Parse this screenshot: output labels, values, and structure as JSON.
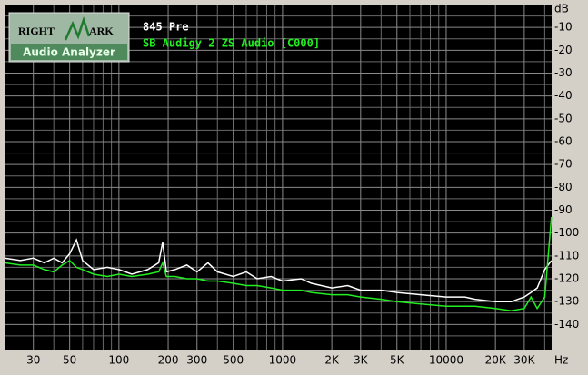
{
  "chart_data": {
    "type": "line",
    "logo": {
      "left": "RIGHT",
      "right": "ARK",
      "bottom": "Audio Analyzer"
    },
    "x_unit": "Hz",
    "y_unit": "dB",
    "xscale": "log",
    "xlim": [
      20,
      44100
    ],
    "ylim": [
      -151,
      0
    ],
    "xticks": [
      30,
      50,
      100,
      200,
      300,
      500,
      1000,
      {
        "value": 2000,
        "label": "2K"
      },
      {
        "value": 3000,
        "label": "3K"
      },
      {
        "value": 5000,
        "label": "5K"
      },
      10000,
      {
        "value": 20000,
        "label": "20K"
      },
      {
        "value": 30000,
        "label": "30K"
      }
    ],
    "x_minor_grid": [
      40,
      60,
      70,
      80,
      90,
      400,
      600,
      700,
      800,
      900,
      4000,
      6000,
      7000,
      8000,
      9000,
      40000
    ],
    "yticks": [
      -10,
      -20,
      -30,
      -40,
      -50,
      -60,
      -70,
      -80,
      -90,
      -100,
      -110,
      -120,
      -130,
      -140
    ],
    "y_minor_grid": [
      -5,
      -15,
      -25,
      -35,
      -45,
      -55,
      -65,
      -75,
      -85,
      -95,
      -105,
      -115,
      -125,
      -135,
      -145
    ],
    "grid": true,
    "series": [
      {
        "name": "845 Pre",
        "color": "#ffffff",
        "x": [
          20,
          25,
          30,
          35,
          40,
          45,
          50,
          55,
          60,
          70,
          85,
          100,
          120,
          150,
          175,
          185,
          195,
          220,
          260,
          300,
          350,
          400,
          500,
          600,
          700,
          850,
          1000,
          1300,
          1500,
          2000,
          2500,
          3000,
          4000,
          5000,
          7000,
          10000,
          13000,
          15000,
          20000,
          25000,
          30000,
          33000,
          36000,
          40000,
          44000
        ],
        "values": [
          -111,
          -112,
          -111,
          -113,
          -111,
          -113,
          -109,
          -103,
          -112,
          -116,
          -115,
          -116,
          -118,
          -116,
          -113,
          -104,
          -117,
          -116,
          -114,
          -117,
          -113,
          -117,
          -119,
          -117,
          -120,
          -119,
          -121,
          -120,
          -122,
          -124,
          -123,
          -125,
          -125,
          -126,
          -127,
          -128,
          -128,
          -129,
          -130,
          -130,
          -128,
          -126,
          -124,
          -116,
          -112
        ]
      },
      {
        "name": "SB Audigy 2 ZS Audio [C000]",
        "color": "#22ee22",
        "x": [
          20,
          25,
          30,
          35,
          40,
          45,
          50,
          55,
          60,
          70,
          85,
          100,
          120,
          150,
          175,
          185,
          195,
          220,
          260,
          300,
          350,
          400,
          500,
          600,
          700,
          850,
          1000,
          1300,
          1500,
          2000,
          2500,
          3000,
          4000,
          5000,
          7000,
          10000,
          13000,
          15000,
          20000,
          25000,
          30000,
          33000,
          36000,
          40000,
          44000
        ],
        "values": [
          -113,
          -114,
          -114,
          -116,
          -117,
          -114,
          -112,
          -115,
          -116,
          -118,
          -119,
          -118,
          -119,
          -118,
          -117,
          -113,
          -119,
          -119,
          -120,
          -120,
          -121,
          -121,
          -122,
          -123,
          -123,
          -124,
          -125,
          -125,
          -126,
          -127,
          -127,
          -128,
          -129,
          -130,
          -131,
          -132,
          -132,
          -132,
          -133,
          -134,
          -133,
          -128,
          -133,
          -128,
          -93
        ]
      }
    ]
  }
}
